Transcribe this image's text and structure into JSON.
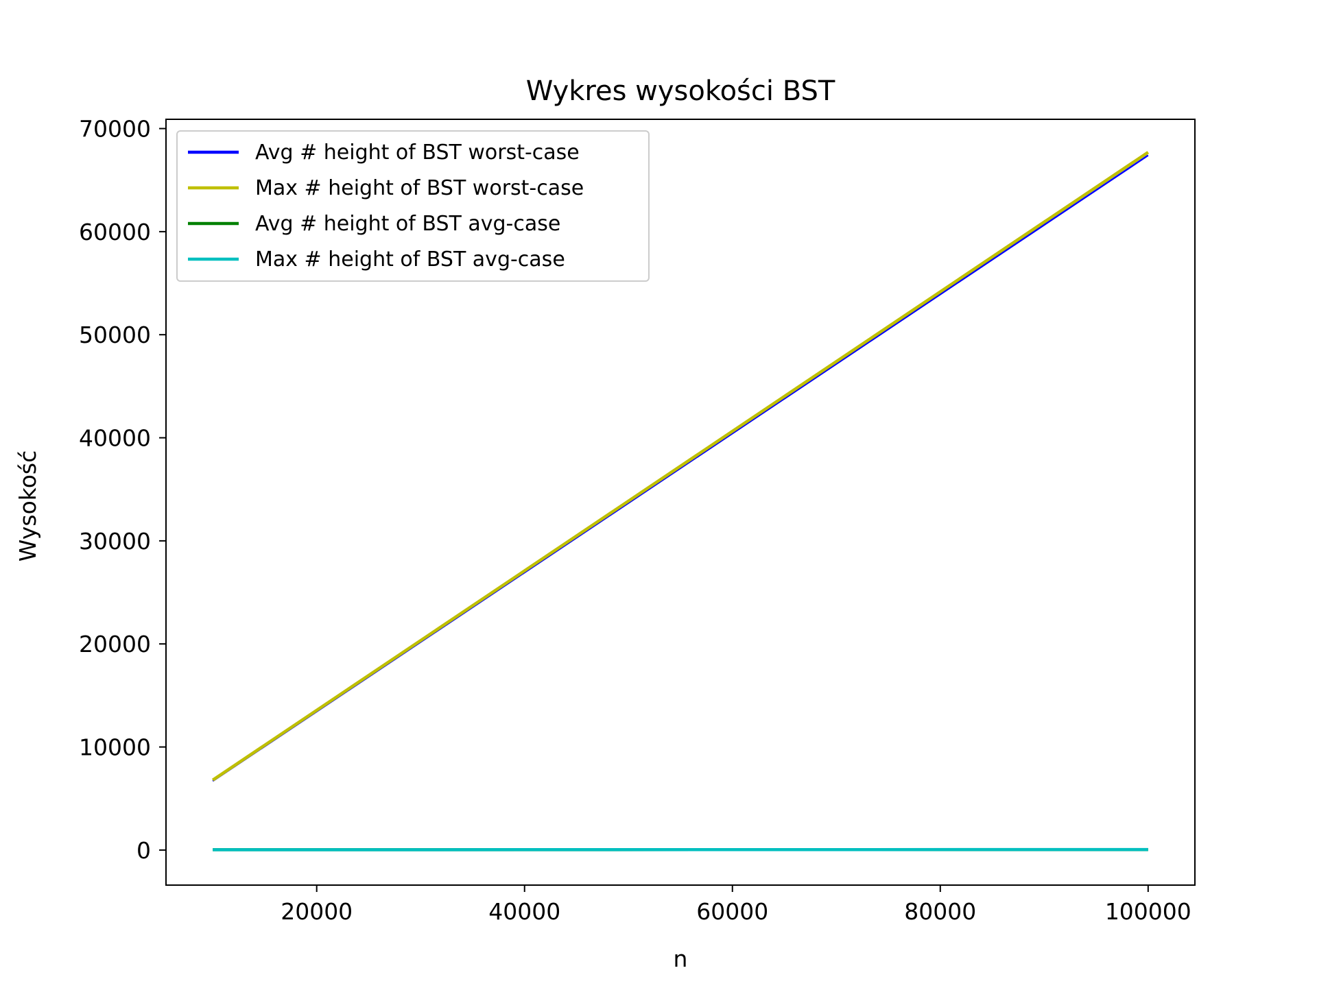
{
  "chart_data": {
    "type": "line",
    "title": "Wykres wysokości BST",
    "xlabel": "n",
    "ylabel": "Wysokość",
    "xlim": [
      5500,
      104500
    ],
    "ylim": [
      -3400,
      70900
    ],
    "xticks": [
      20000,
      40000,
      60000,
      80000,
      100000
    ],
    "xtick_labels": [
      "20000",
      "40000",
      "60000",
      "80000",
      "100000"
    ],
    "yticks": [
      0,
      10000,
      20000,
      30000,
      40000,
      50000,
      60000,
      70000
    ],
    "ytick_labels": [
      "0",
      "10000",
      "20000",
      "30000",
      "40000",
      "50000",
      "60000",
      "70000"
    ],
    "grid": false,
    "legend_position": "top-left",
    "series": [
      {
        "name": "Avg # height of BST worst-case",
        "color": "#0000ff",
        "x": [
          10000,
          100000
        ],
        "y": [
          6700,
          67400
        ]
      },
      {
        "name": "Max # height of BST worst-case",
        "color": "#bfbf00",
        "x": [
          10000,
          100000
        ],
        "y": [
          6800,
          67700
        ]
      },
      {
        "name": "Avg # height of BST avg-case",
        "color": "#008000",
        "x": [
          10000,
          100000
        ],
        "y": [
          30,
          45
        ]
      },
      {
        "name": "Max # height of BST avg-case",
        "color": "#00bfbf",
        "x": [
          10000,
          100000
        ],
        "y": [
          35,
          50
        ]
      }
    ]
  }
}
